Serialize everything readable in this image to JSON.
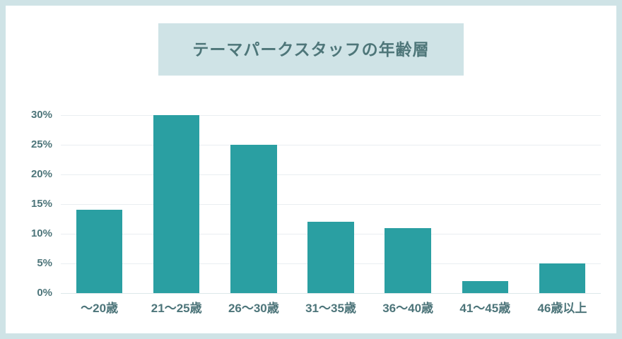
{
  "page": {
    "background": "#ffffff",
    "frame_border_color": "#cfe3e6"
  },
  "title": {
    "text": "テーマパークスタッフの年齢層",
    "box_color": "#cfe3e6",
    "text_color": "#4e7679"
  },
  "chart_data": {
    "type": "bar",
    "title": "テーマパークスタッフの年齢層",
    "categories": [
      "〜20歳",
      "21〜25歳",
      "26〜30歳",
      "31〜35歳",
      "36〜40歳",
      "41〜45歳",
      "46歳以上"
    ],
    "values": [
      14,
      30,
      25,
      12,
      11,
      2,
      5
    ],
    "value_unit": "%",
    "xlabel": "",
    "ylabel": "",
    "ylim": [
      0,
      30
    ],
    "ytick_step": 5,
    "ytick_suffix": "%",
    "ytick_labels": [
      "0%",
      "5%",
      "10%",
      "15%",
      "20%",
      "25%",
      "30%"
    ],
    "grid": true,
    "legend_position": "none",
    "bar_color": "#2a9fa2",
    "gridline_color": "#e9eef1",
    "axis_text_color": "#4d757a"
  }
}
